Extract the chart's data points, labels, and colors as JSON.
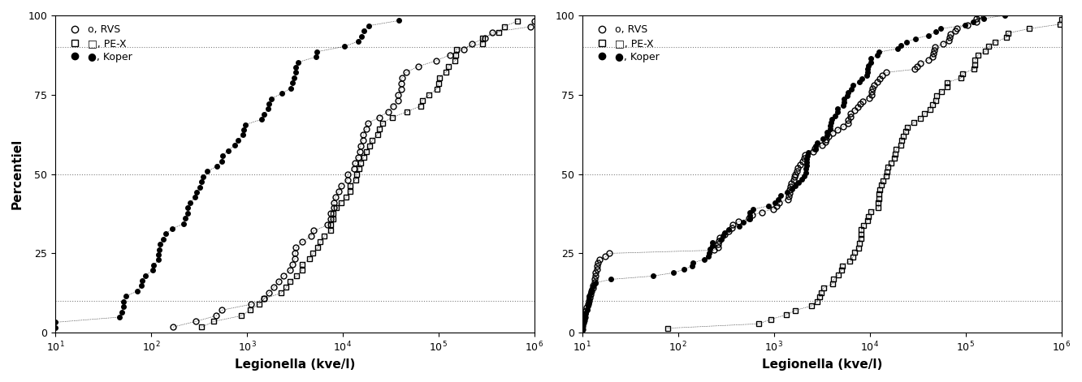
{
  "xlim": [
    10,
    1000000.0
  ],
  "ylim": [
    0,
    100
  ],
  "xlabel": "Legionella (kve/l)",
  "ylabel": "Percentiel",
  "yticks": [
    0,
    25,
    50,
    75,
    100
  ],
  "hlines": [
    10,
    50,
    90
  ],
  "legend_labels": [
    "RVS",
    "PE-X",
    "Koper"
  ],
  "bg_color": "#f0f0f0",
  "plot_bg": "#ffffff"
}
